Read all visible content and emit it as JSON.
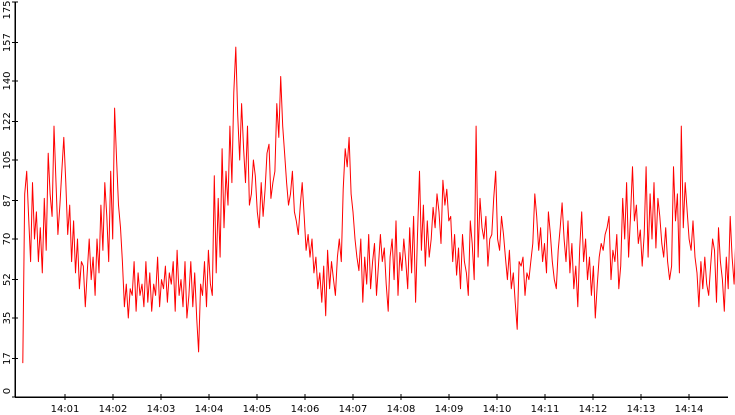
{
  "chart_data": {
    "type": "line",
    "title": "",
    "xlabel": "",
    "ylabel": "",
    "ylim": [
      0,
      175
    ],
    "xlim_minutes": [
      0.12,
      14.98
    ],
    "grid": false,
    "legend": "none",
    "line_color": "#ff0000",
    "y_ticks": [
      0,
      17,
      35,
      52,
      70,
      87,
      105,
      122,
      140,
      157,
      175
    ],
    "y_tick_labels": [
      "0",
      "17",
      "35",
      "52",
      "70",
      "87",
      "105",
      "122",
      "140",
      "157",
      "175"
    ],
    "x_ticks_minutes": [
      1,
      2,
      3,
      4,
      5,
      6,
      7,
      8,
      9,
      10,
      11,
      12,
      13,
      14
    ],
    "x_tick_labels": [
      "14:01",
      "14:02",
      "14:03",
      "14:04",
      "14:05",
      "14:06",
      "14:07",
      "14:08",
      "14:09",
      "14:10",
      "14:11",
      "14:12",
      "14:13",
      "14:14"
    ],
    "series": [
      {
        "x_start": 0.12,
        "x_end": 14.98,
        "values": [
          15,
          90,
          100,
          80,
          60,
          95,
          70,
          82,
          60,
          75,
          55,
          88,
          65,
          108,
          90,
          80,
          120,
          95,
          72,
          85,
          100,
          115,
          95,
          72,
          85,
          60,
          78,
          55,
          70,
          48,
          60,
          58,
          40,
          55,
          70,
          52,
          62,
          45,
          70,
          55,
          85,
          65,
          95,
          80,
          60,
          100,
          70,
          128,
          105,
          85,
          75,
          60,
          40,
          50,
          35,
          48,
          45,
          60,
          38,
          55,
          45,
          50,
          40,
          60,
          42,
          55,
          38,
          50,
          45,
          62,
          40,
          52,
          48,
          58,
          42,
          55,
          50,
          60,
          38,
          65,
          45,
          52,
          40,
          60,
          35,
          45,
          60,
          40,
          55,
          35,
          20,
          50,
          45,
          60,
          40,
          65,
          50,
          45,
          98,
          55,
          88,
          62,
          110,
          75,
          100,
          85,
          120,
          95,
          135,
          155,
          125,
          105,
          130,
          110,
          95,
          120,
          85,
          90,
          105,
          98,
          82,
          75,
          95,
          80,
          92,
          108,
          112,
          88,
          95,
          100,
          130,
          115,
          142,
          120,
          108,
          95,
          85,
          90,
          100,
          82,
          78,
          72,
          85,
          95,
          80,
          65,
          72,
          62,
          70,
          55,
          62,
          48,
          55,
          42,
          58,
          36,
          65,
          48,
          60,
          52,
          45,
          62,
          70,
          60,
          92,
          110,
          102,
          115,
          90,
          82,
          70,
          62,
          56,
          70,
          42,
          62,
          50,
          72,
          48,
          60,
          68,
          45,
          58,
          72,
          60,
          66,
          50,
          38,
          62,
          70,
          52,
          78,
          45,
          64,
          56,
          70,
          60,
          48,
          75,
          55,
          80,
          42,
          72,
          100,
          65,
          85,
          58,
          78,
          62,
          70,
          84,
          75,
          90,
          82,
          68,
          96,
          85,
          92,
          78,
          80,
          60,
          72,
          54,
          66,
          48,
          72,
          60,
          55,
          45,
          78,
          68,
          52,
          120,
          62,
          88,
          75,
          70,
          80,
          58,
          70,
          72,
          88,
          100,
          70,
          65,
          80,
          72,
          62,
          52,
          65,
          48,
          55,
          42,
          30,
          60,
          58,
          62,
          45,
          55,
          52,
          60,
          68,
          90,
          80,
          65,
          75,
          60,
          68,
          55,
          82,
          72,
          60,
          52,
          48,
          65,
          75,
          86,
          70,
          60,
          78,
          55,
          68,
          48,
          58,
          40,
          66,
          82,
          60,
          70,
          52,
          62,
          45,
          58,
          35,
          50,
          62,
          68,
          65,
          72,
          75,
          80,
          52,
          65,
          60,
          72,
          48,
          58,
          88,
          70,
          95,
          62,
          80,
          102,
          78,
          85,
          68,
          74,
          58,
          72,
          102,
          62,
          90,
          70,
          95,
          66,
          88,
          80,
          68,
          62,
          75,
          60,
          52,
          58,
          102,
          78,
          90,
          55,
          120,
          75,
          95,
          82,
          70,
          65,
          78,
          62,
          55,
          40,
          60,
          48,
          62,
          50,
          45,
          58,
          70,
          65,
          42,
          75,
          60,
          52,
          38,
          62,
          48,
          80,
          62,
          50,
          72
        ]
      }
    ]
  }
}
